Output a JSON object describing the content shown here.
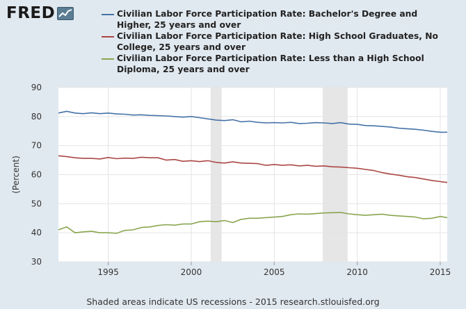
{
  "brand": {
    "logo_text": "FRED",
    "logo_icon": "chart-line-icon"
  },
  "footer": "Shaded areas indicate US recessions - 2015 research.stlouisfed.org",
  "chart_data": {
    "type": "line",
    "ylabel": "(Percent)",
    "ylim": [
      30,
      90
    ],
    "yticks": [
      30,
      40,
      50,
      60,
      70,
      80,
      90
    ],
    "xlim": [
      1992.0,
      2015.42
    ],
    "xticks": [
      1995,
      2000,
      2005,
      2010,
      2015
    ],
    "grid": true,
    "legend_position": "top",
    "recessions": [
      [
        2001.17,
        2001.83
      ],
      [
        2007.92,
        2009.42
      ]
    ],
    "series": [
      {
        "name": "Civilian Labor Force Participation Rate: Bachelor's Degree and Higher, 25 years and over",
        "color": "#4572a7",
        "x": [
          1992.0,
          1992.5,
          1993.0,
          1993.5,
          1994.0,
          1994.5,
          1995.0,
          1995.5,
          1996.0,
          1996.5,
          1997.0,
          1997.5,
          1998.0,
          1998.5,
          1999.0,
          1999.5,
          2000.0,
          2000.5,
          2001.0,
          2001.5,
          2002.0,
          2002.5,
          2003.0,
          2003.5,
          2004.0,
          2004.5,
          2005.0,
          2005.5,
          2006.0,
          2006.5,
          2007.0,
          2007.5,
          2008.0,
          2008.5,
          2009.0,
          2009.5,
          2010.0,
          2010.5,
          2011.0,
          2011.5,
          2012.0,
          2012.5,
          2013.0,
          2013.5,
          2014.0,
          2014.5,
          2015.0,
          2015.42
        ],
        "values": [
          81.2,
          81.8,
          81.2,
          81.0,
          81.3,
          81.0,
          81.2,
          80.9,
          80.8,
          80.5,
          80.6,
          80.4,
          80.3,
          80.2,
          80.0,
          79.8,
          80.0,
          79.6,
          79.2,
          78.8,
          78.6,
          78.9,
          78.2,
          78.4,
          78.0,
          77.8,
          77.9,
          77.8,
          78.0,
          77.6,
          77.7,
          77.9,
          77.8,
          77.6,
          77.9,
          77.4,
          77.3,
          76.9,
          76.8,
          76.6,
          76.4,
          76.0,
          75.8,
          75.6,
          75.3,
          74.9,
          74.6,
          74.6
        ]
      },
      {
        "name": "Civilian Labor Force Participation Rate: High School Graduates, No College, 25 years and over",
        "color": "#aa4643",
        "x": [
          1992.0,
          1992.5,
          1993.0,
          1993.5,
          1994.0,
          1994.5,
          1995.0,
          1995.5,
          1996.0,
          1996.5,
          1997.0,
          1997.5,
          1998.0,
          1998.5,
          1999.0,
          1999.5,
          2000.0,
          2000.5,
          2001.0,
          2001.5,
          2002.0,
          2002.5,
          2003.0,
          2003.5,
          2004.0,
          2004.5,
          2005.0,
          2005.5,
          2006.0,
          2006.5,
          2007.0,
          2007.5,
          2008.0,
          2008.5,
          2009.0,
          2009.5,
          2010.0,
          2010.5,
          2011.0,
          2011.5,
          2012.0,
          2012.5,
          2013.0,
          2013.5,
          2014.0,
          2014.5,
          2015.0,
          2015.42
        ],
        "values": [
          66.5,
          66.2,
          65.8,
          65.6,
          65.6,
          65.4,
          65.9,
          65.5,
          65.7,
          65.6,
          66.0,
          65.8,
          65.8,
          65.0,
          65.2,
          64.6,
          64.8,
          64.5,
          64.8,
          64.2,
          64.0,
          64.4,
          64.0,
          63.9,
          63.8,
          63.2,
          63.5,
          63.2,
          63.4,
          63.0,
          63.2,
          62.9,
          63.0,
          62.7,
          62.6,
          62.4,
          62.2,
          61.8,
          61.4,
          60.7,
          60.2,
          59.8,
          59.3,
          59.0,
          58.5,
          58.0,
          57.6,
          57.3
        ]
      },
      {
        "name": "Civilian Labor Force Participation Rate: Less than a High School Diploma, 25 years and over",
        "color": "#89a54e",
        "x": [
          1992.0,
          1992.5,
          1993.0,
          1993.5,
          1994.0,
          1994.5,
          1995.0,
          1995.5,
          1996.0,
          1996.5,
          1997.0,
          1997.5,
          1998.0,
          1998.5,
          1999.0,
          1999.5,
          2000.0,
          2000.5,
          2001.0,
          2001.5,
          2002.0,
          2002.5,
          2003.0,
          2003.5,
          2004.0,
          2004.5,
          2005.0,
          2005.5,
          2006.0,
          2006.5,
          2007.0,
          2007.5,
          2008.0,
          2008.5,
          2009.0,
          2009.5,
          2010.0,
          2010.5,
          2011.0,
          2011.5,
          2012.0,
          2012.5,
          2013.0,
          2013.5,
          2014.0,
          2014.5,
          2015.0,
          2015.42
        ],
        "values": [
          41.0,
          42.0,
          40.0,
          40.3,
          40.5,
          40.0,
          40.0,
          39.8,
          40.8,
          41.0,
          41.8,
          42.0,
          42.5,
          42.8,
          42.6,
          43.0,
          43.0,
          43.8,
          44.0,
          43.8,
          44.2,
          43.5,
          44.6,
          45.0,
          45.0,
          45.2,
          45.4,
          45.6,
          46.2,
          46.5,
          46.4,
          46.6,
          46.8,
          46.9,
          47.0,
          46.5,
          46.2,
          46.0,
          46.2,
          46.4,
          46.0,
          45.8,
          45.6,
          45.4,
          44.8,
          45.0,
          45.6,
          45.2
        ]
      }
    ]
  }
}
